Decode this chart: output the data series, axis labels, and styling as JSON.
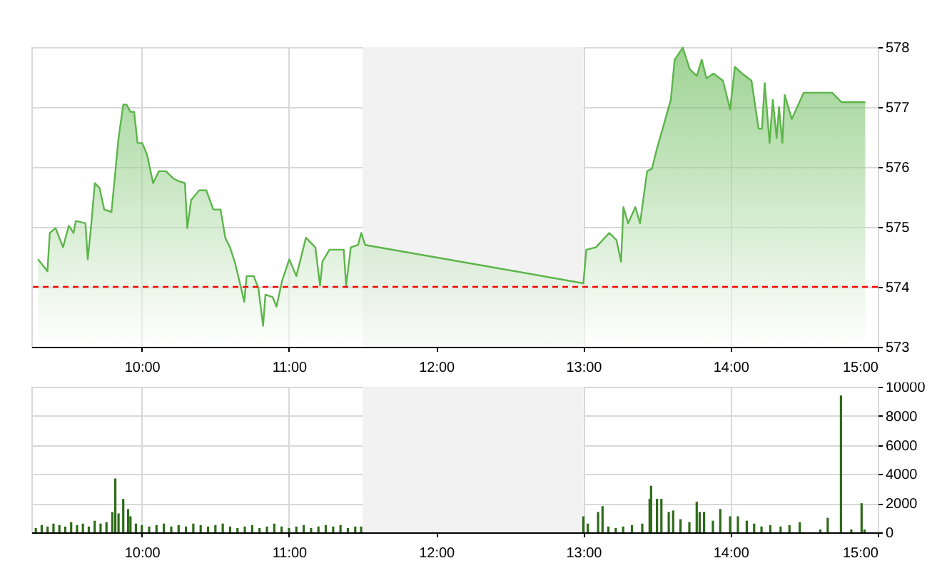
{
  "chart_data": [
    {
      "type": "area",
      "grid": true,
      "x": [
        9.295,
        9.359,
        9.375,
        9.414,
        9.465,
        9.504,
        9.536,
        9.552,
        9.617,
        9.633,
        9.659,
        9.681,
        9.713,
        9.745,
        9.794,
        9.842,
        9.874,
        9.897,
        9.923,
        9.948,
        9.971,
        10.003,
        10.035,
        10.077,
        10.116,
        10.164,
        10.213,
        10.245,
        10.293,
        10.309,
        10.335,
        10.39,
        10.438,
        10.486,
        10.535,
        10.567,
        10.599,
        10.631,
        10.663,
        10.696,
        10.712,
        10.76,
        10.792,
        10.824,
        10.84,
        10.889,
        10.915,
        10.953,
        11.002,
        11.05,
        11.115,
        11.179,
        11.211,
        11.227,
        11.275,
        11.372,
        11.388,
        11.42,
        11.469,
        11.491,
        11.517,
        13.0,
        13.02,
        13.085,
        13.176,
        13.225,
        13.256,
        13.272,
        13.304,
        13.353,
        13.385,
        13.433,
        13.466,
        13.498,
        13.594,
        13.62,
        13.675,
        13.723,
        13.771,
        13.804,
        13.836,
        13.884,
        13.948,
        13.997,
        14.029,
        14.078,
        14.142,
        14.19,
        14.213,
        14.232,
        14.265,
        14.287,
        14.313,
        14.329,
        14.352,
        14.368,
        14.416,
        14.497,
        14.69,
        14.754,
        14.915
      ],
      "series": [
        {
          "color": "#5cb54a",
          "values": [
            574.46,
            574.26,
            574.9,
            574.98,
            574.66,
            575.02,
            574.9,
            575.1,
            575.06,
            574.46,
            575.1,
            575.73,
            575.65,
            575.29,
            575.25,
            576.48,
            577.04,
            577.04,
            576.92,
            576.92,
            576.4,
            576.4,
            576.21,
            575.73,
            575.93,
            575.93,
            575.81,
            575.77,
            575.73,
            574.98,
            575.45,
            575.61,
            575.61,
            575.29,
            575.29,
            574.82,
            574.66,
            574.42,
            574.1,
            573.75,
            574.18,
            574.18,
            573.98,
            573.35,
            573.87,
            573.83,
            573.67,
            574.1,
            574.46,
            574.18,
            574.82,
            574.66,
            574.02,
            574.42,
            574.62,
            574.62,
            574.02,
            574.66,
            574.7,
            574.9,
            574.7,
            574.06,
            574.62,
            574.66,
            574.9,
            574.78,
            574.42,
            575.33,
            575.06,
            575.33,
            575.06,
            575.93,
            575.97,
            576.29,
            577.12,
            577.79,
            577.99,
            577.63,
            577.52,
            577.79,
            577.48,
            577.56,
            577.44,
            576.96,
            577.67,
            577.56,
            577.44,
            576.64,
            576.64,
            577.4,
            576.4,
            577.12,
            576.48,
            577.0,
            576.4,
            577.2,
            576.8,
            577.24,
            577.24,
            577.08,
            577.08
          ]
        }
      ],
      "xlim": [
        9.25,
        15
      ],
      "xticks": [
        {
          "value": 10,
          "label": "10:00"
        },
        {
          "value": 11,
          "label": "11:00"
        },
        {
          "value": 12,
          "label": "12:00"
        },
        {
          "value": 13,
          "label": "13:00"
        },
        {
          "value": 14,
          "label": "14:00"
        },
        {
          "value": 15,
          "label": "15:00"
        }
      ],
      "ylim": [
        573,
        578
      ],
      "yticks": [
        573,
        574,
        575,
        576,
        577,
        578
      ],
      "ref_lines": [
        {
          "axis": "y",
          "value": 574,
          "color": "#ff0000",
          "line_style": "dashed"
        }
      ],
      "bands": [
        {
          "axis": "x",
          "from": 11.5,
          "to": 13,
          "color": "#f2f2f2"
        }
      ]
    },
    {
      "type": "bar",
      "grid": true,
      "x": [
        9.28,
        9.32,
        9.36,
        9.4,
        9.44,
        9.48,
        9.52,
        9.56,
        9.6,
        9.64,
        9.68,
        9.72,
        9.76,
        9.8,
        9.82,
        9.842,
        9.874,
        9.907,
        9.923,
        9.96,
        10.0,
        10.05,
        10.1,
        10.15,
        10.2,
        10.25,
        10.3,
        10.35,
        10.4,
        10.45,
        10.5,
        10.55,
        10.6,
        10.65,
        10.7,
        10.75,
        10.8,
        10.85,
        10.9,
        10.95,
        11.0,
        11.05,
        11.1,
        11.15,
        11.2,
        11.25,
        11.3,
        11.35,
        11.4,
        11.45,
        11.49,
        13.0,
        13.03,
        13.1,
        13.13,
        13.17,
        13.22,
        13.27,
        13.33,
        13.4,
        13.45,
        13.46,
        13.5,
        13.53,
        13.58,
        13.61,
        13.66,
        13.72,
        13.77,
        13.79,
        13.82,
        13.88,
        13.93,
        13.997,
        14.05,
        14.11,
        14.16,
        14.21,
        14.27,
        14.34,
        14.4,
        14.47,
        14.61,
        14.66,
        14.75,
        14.82,
        14.89,
        14.91
      ],
      "series": [
        {
          "color": "#2e6b1a",
          "values": [
            300,
            500,
            400,
            600,
            500,
            400,
            700,
            500,
            600,
            400,
            800,
            600,
            700,
            1400,
            3700,
            1300,
            2300,
            1600,
            1100,
            600,
            500,
            400,
            500,
            600,
            400,
            500,
            400,
            600,
            500,
            400,
            500,
            600,
            400,
            300,
            400,
            500,
            300,
            400,
            600,
            400,
            300,
            400,
            500,
            300,
            400,
            500,
            400,
            500,
            300,
            400,
            400,
            1100,
            600,
            1400,
            1800,
            400,
            300,
            400,
            500,
            600,
            2300,
            3200,
            2300,
            2300,
            1400,
            1500,
            900,
            700,
            2100,
            1400,
            1400,
            800,
            1600,
            1100,
            1100,
            800,
            600,
            400,
            500,
            400,
            500,
            700,
            200,
            1000,
            9400,
            200,
            2000,
            200
          ]
        }
      ],
      "xlim": [
        9.25,
        15
      ],
      "xticks": [
        {
          "value": 10,
          "label": "10:00"
        },
        {
          "value": 11,
          "label": "11:00"
        },
        {
          "value": 12,
          "label": "12:00"
        },
        {
          "value": 13,
          "label": "13:00"
        },
        {
          "value": 14,
          "label": "14:00"
        },
        {
          "value": 15,
          "label": "15:00"
        }
      ],
      "ylim": [
        0,
        10000
      ],
      "yticks": [
        0,
        2000,
        4000,
        6000,
        8000,
        10000
      ],
      "bands": [
        {
          "axis": "x",
          "from": 11.5,
          "to": 13,
          "color": "#f2f2f2"
        }
      ]
    }
  ]
}
